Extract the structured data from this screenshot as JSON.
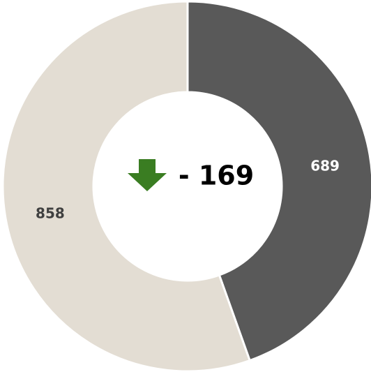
{
  "chart_data": {
    "type": "donut",
    "categories": [
      null,
      null
    ],
    "values": [
      689,
      858
    ],
    "colors": [
      "#595959",
      "#e3ddd3"
    ],
    "label_colors": [
      "#ffffff",
      "#404040"
    ],
    "center_label": "- 169"
  }
}
